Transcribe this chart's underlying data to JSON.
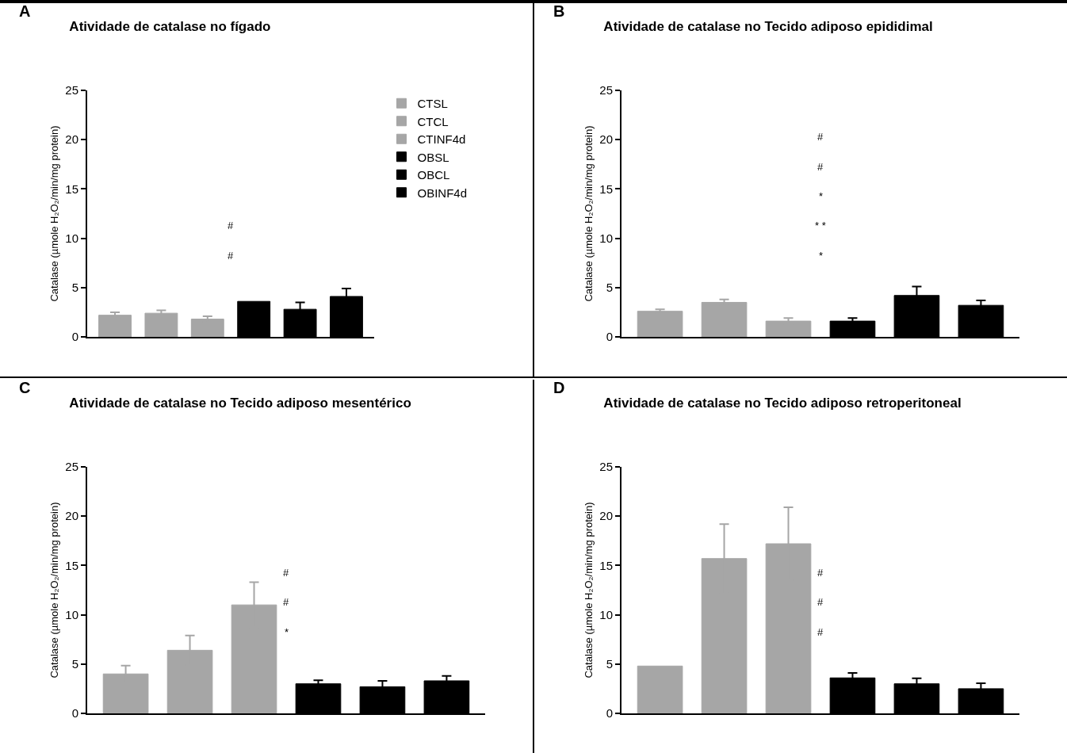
{
  "chart_data": [
    {
      "type": "bar",
      "title": "Atividade de catalase no fígado",
      "ylabel": "Catalase (µmole H₂O₂/min/mg protein)",
      "categories": [
        null,
        null,
        null,
        null,
        null,
        null
      ],
      "ylim": [
        0,
        25
      ],
      "yticks": [
        0,
        5,
        10,
        15,
        20,
        25
      ],
      "legend": "right",
      "series": [
        {
          "name": "CTSL",
          "color": "#a6a6a6",
          "values": [
            2.2,
            null,
            null,
            null,
            null,
            null
          ],
          "errors": [
            0.3,
            null,
            null,
            null,
            null,
            null
          ]
        },
        {
          "name": "CTCL",
          "color": "#a6a6a6",
          "values": [
            null,
            2.4,
            null,
            null,
            null,
            null
          ],
          "errors": [
            null,
            0.3,
            null,
            null,
            null,
            null
          ]
        },
        {
          "name": "CTINF4d",
          "color": "#a6a6a6",
          "values": [
            null,
            null,
            1.8,
            null,
            null,
            null
          ],
          "errors": [
            null,
            null,
            0.3,
            null,
            null,
            null
          ]
        },
        {
          "name": "OBSL",
          "color": "#000000",
          "values": [
            null,
            null,
            null,
            3.6,
            null,
            null
          ],
          "errors": [
            null,
            null,
            null,
            null,
            null,
            null
          ]
        },
        {
          "name": "OBCL",
          "color": "#000000",
          "values": [
            null,
            null,
            null,
            null,
            2.8,
            null
          ],
          "errors": [
            null,
            null,
            null,
            null,
            0.7,
            null
          ]
        },
        {
          "name": "OBINF4d",
          "color": "#000000",
          "values": [
            null,
            null,
            null,
            null,
            null,
            4.1
          ],
          "errors": [
            null,
            null,
            null,
            null,
            null,
            0.8
          ]
        }
      ],
      "annotations": [
        "A",
        "#",
        "#"
      ]
    },
    {
      "type": "bar",
      "title": "Atividade de catalase no Tecido adiposo epididimal",
      "ylabel": "Catalase (µmole H₂O₂/min/mg protein)",
      "categories": [
        null,
        null,
        null,
        null,
        null,
        null
      ],
      "ylim": [
        0,
        25
      ],
      "yticks": [
        0,
        5,
        10,
        15,
        20,
        25
      ],
      "series": [
        {
          "color": "#a6a6a6",
          "values": [
            2.6,
            null,
            null,
            null,
            null,
            null
          ],
          "errors": [
            0.2,
            null,
            null,
            null,
            null,
            null
          ]
        },
        {
          "color": "#a6a6a6",
          "values": [
            null,
            3.5,
            null,
            null,
            null,
            null
          ],
          "errors": [
            null,
            0.3,
            null,
            null,
            null,
            null
          ]
        },
        {
          "color": "#a6a6a6",
          "values": [
            null,
            null,
            1.6,
            null,
            null,
            null
          ],
          "errors": [
            null,
            null,
            0.3,
            null,
            null,
            null
          ]
        },
        {
          "color": "#000000",
          "values": [
            null,
            null,
            null,
            1.6,
            null,
            null
          ],
          "errors": [
            null,
            null,
            null,
            0.3,
            null,
            null
          ]
        },
        {
          "color": "#000000",
          "values": [
            null,
            null,
            null,
            null,
            4.2,
            null
          ],
          "errors": [
            null,
            null,
            null,
            null,
            0.9,
            null
          ]
        },
        {
          "color": "#000000",
          "values": [
            null,
            null,
            null,
            null,
            null,
            3.2
          ],
          "errors": [
            null,
            null,
            null,
            null,
            null,
            0.5
          ]
        }
      ],
      "annotations": [
        "B",
        "*",
        "* *",
        "*",
        "#",
        "#"
      ]
    },
    {
      "type": "bar",
      "title": "Atividade de catalase no Tecido adiposo mesentérico",
      "ylabel": "Catalase (µmole H₂O₂/min/mg protein)",
      "categories": [
        null,
        null,
        null,
        null,
        null,
        null
      ],
      "ylim": [
        0,
        25
      ],
      "yticks": [
        0,
        5,
        10,
        15,
        20,
        25
      ],
      "series": [
        {
          "color": "#a6a6a6",
          "values": [
            4.0,
            null,
            null,
            null,
            null,
            null
          ],
          "errors": [
            0.85,
            null,
            null,
            null,
            null,
            null
          ]
        },
        {
          "color": "#a6a6a6",
          "values": [
            null,
            6.4,
            null,
            null,
            null,
            null
          ],
          "errors": [
            null,
            1.5,
            null,
            null,
            null,
            null
          ]
        },
        {
          "color": "#a6a6a6",
          "values": [
            null,
            null,
            11.0,
            null,
            null,
            null
          ],
          "errors": [
            null,
            null,
            2.3,
            null,
            null,
            null
          ]
        },
        {
          "color": "#000000",
          "values": [
            null,
            null,
            null,
            3.0,
            null,
            null
          ],
          "errors": [
            null,
            null,
            null,
            0.35,
            null,
            null
          ]
        },
        {
          "color": "#000000",
          "values": [
            null,
            null,
            null,
            null,
            2.7,
            null
          ],
          "errors": [
            null,
            null,
            null,
            null,
            0.6,
            null
          ]
        },
        {
          "color": "#000000",
          "values": [
            null,
            null,
            null,
            null,
            null,
            3.3
          ],
          "errors": [
            null,
            null,
            null,
            null,
            null,
            0.5
          ]
        }
      ],
      "annotations": [
        "C",
        "*",
        "#",
        "#"
      ]
    },
    {
      "type": "bar",
      "title": "Atividade de catalase no Tecido adiposo retroperitoneal",
      "ylabel": "Catalase (µmole H₂O₂/min/mg protein)",
      "categories": [
        null,
        null,
        null,
        null,
        null,
        null
      ],
      "ylim": [
        0,
        25
      ],
      "yticks": [
        0,
        5,
        10,
        15,
        20,
        25
      ],
      "series": [
        {
          "color": "#a6a6a6",
          "values": [
            4.8,
            null,
            null,
            null,
            null,
            null
          ],
          "errors": [
            null,
            null,
            null,
            null,
            null,
            null
          ]
        },
        {
          "color": "#a6a6a6",
          "values": [
            null,
            15.7,
            null,
            null,
            null,
            null
          ],
          "errors": [
            null,
            3.5,
            null,
            null,
            null,
            null
          ]
        },
        {
          "color": "#a6a6a6",
          "values": [
            null,
            null,
            17.2,
            null,
            null,
            null
          ],
          "errors": [
            null,
            null,
            3.7,
            null,
            null,
            null
          ]
        },
        {
          "color": "#000000",
          "values": [
            null,
            null,
            null,
            3.6,
            null,
            null
          ],
          "errors": [
            null,
            null,
            null,
            0.5,
            null,
            null
          ]
        },
        {
          "color": "#000000",
          "values": [
            null,
            null,
            null,
            null,
            3.0,
            null
          ],
          "errors": [
            null,
            null,
            null,
            null,
            0.55,
            null
          ]
        },
        {
          "color": "#000000",
          "values": [
            null,
            null,
            null,
            null,
            null,
            2.5
          ],
          "errors": [
            null,
            null,
            null,
            null,
            null,
            0.55
          ]
        }
      ],
      "annotations": [
        "D",
        "#",
        "#",
        "#"
      ]
    }
  ]
}
